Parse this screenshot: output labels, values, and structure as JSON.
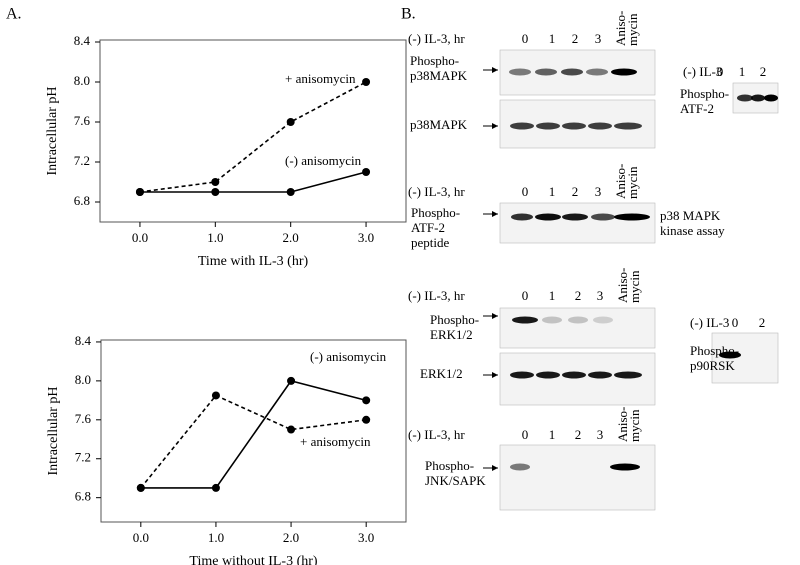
{
  "panel_a": {
    "label": "A."
  },
  "chart_data": [
    {
      "type": "line",
      "x": [
        0,
        1,
        2,
        3
      ],
      "xlim": [
        -0.53,
        3.53
      ],
      "xticks": [
        {
          "value": 0,
          "label": "0.0"
        },
        {
          "value": 1,
          "label": "1.0"
        },
        {
          "value": 2,
          "label": "2.0"
        },
        {
          "value": 3,
          "label": "3.0"
        }
      ],
      "ylim": [
        6.6,
        8.42
      ],
      "yticks": [
        6.8,
        7.2,
        7.6,
        {
          "value": 8,
          "label": "8.0"
        },
        8.4
      ],
      "x_label": "Time with IL-3 (hr)",
      "y_label": "Intracellular pH",
      "series": [
        {
          "name": "+ anisomycin",
          "color": "#000000",
          "linestyle": "dashed",
          "values": [
            6.9,
            7.0,
            7.6,
            8.0
          ]
        },
        {
          "name": "(-) anisomycin",
          "color": "#000000",
          "linestyle": "solid",
          "values": [
            6.9,
            6.9,
            6.9,
            7.1
          ]
        }
      ]
    },
    {
      "type": "line",
      "x": [
        0,
        1,
        2,
        3
      ],
      "xlim": [
        -0.53,
        3.53
      ],
      "xticks": [
        {
          "value": 0,
          "label": "0.0"
        },
        {
          "value": 1,
          "label": "1.0"
        },
        {
          "value": 2,
          "label": "2.0"
        },
        {
          "value": 3,
          "label": "3.0"
        }
      ],
      "ylim": [
        6.55,
        8.42
      ],
      "yticks": [
        6.8,
        7.2,
        7.6,
        {
          "value": 8,
          "label": "8.0"
        },
        8.4
      ],
      "x_label": "Time without IL-3 (hr)",
      "y_label": "Intracellular pH",
      "series": [
        {
          "name": "+ anisomycin",
          "color": "#000000",
          "linestyle": "dashed",
          "values": [
            6.9,
            7.85,
            7.5,
            7.6
          ]
        },
        {
          "name": "(-) anisomycin",
          "color": "#000000",
          "linestyle": "solid",
          "values": [
            6.9,
            6.9,
            8.0,
            7.8
          ]
        }
      ]
    }
  ],
  "panel_b": {
    "label": "B.",
    "blocks": [
      {
        "header": "(-) IL-3, hr",
        "lanes": [
          "0",
          "1",
          "2",
          "3"
        ],
        "aniso": [
          "Aniso-",
          "mycin"
        ],
        "blots": [
          [
            "Phospho-",
            "p38MAPK"
          ],
          [
            "p38MAPK"
          ]
        ]
      },
      {
        "header": "(-) IL-3, hr",
        "lanes": [
          "0",
          "1",
          "2",
          "3"
        ],
        "aniso": [
          "Aniso-",
          "mycin"
        ],
        "blots": [
          [
            "Phospho-",
            "ATF-2",
            "peptide"
          ]
        ],
        "note": [
          "p38 MAPK",
          "kinase assay"
        ]
      },
      {
        "header": "(-) IL-3, hr",
        "lanes": [
          "0",
          "1",
          "2",
          "3"
        ],
        "aniso": [
          "Aniso-",
          "mycin"
        ],
        "blots": [
          [
            "Phospho-",
            "ERK1/2"
          ],
          [
            "ERK1/2"
          ]
        ]
      },
      {
        "header": "(-) IL-3, hr",
        "lanes": [
          "0",
          "1",
          "2",
          "3"
        ],
        "aniso": [
          "Aniso-",
          "mycin"
        ],
        "blots": [
          [
            "Phospho-",
            "JNK/SAPK"
          ]
        ]
      }
    ],
    "side": [
      {
        "header": "(-) IL-3",
        "lanes": [
          "0",
          "1",
          "2"
        ],
        "blots": [
          [
            "Phospho-",
            "ATF-2"
          ]
        ]
      },
      {
        "header": "(-) IL-3",
        "lanes": [
          "0",
          "2"
        ],
        "blots": [
          [
            "Phospho-",
            "p90RSK"
          ]
        ]
      }
    ]
  }
}
